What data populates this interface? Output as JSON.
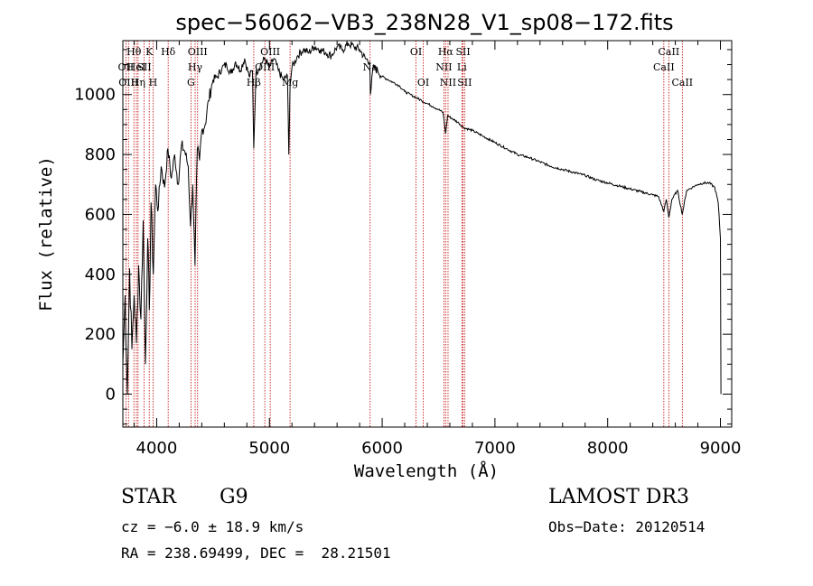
{
  "chart_data": {
    "type": "line",
    "title": "spec−56062−VB3_238N28_V1_sp08−172.fits",
    "xlabel": "Wavelength (Å)",
    "ylabel": "Flux (relative)",
    "xlim": [
      3700,
      9100
    ],
    "ylim": [
      -110,
      1180
    ],
    "xticks": [
      4000,
      5000,
      6000,
      7000,
      8000,
      9000
    ],
    "yticks": [
      0,
      200,
      400,
      600,
      800,
      1000
    ],
    "grid": false,
    "series": [
      {
        "name": "flux",
        "x": [
          3700,
          3720,
          3740,
          3760,
          3780,
          3800,
          3820,
          3840,
          3860,
          3880,
          3900,
          3920,
          3935,
          3950,
          3970,
          3990,
          4010,
          4040,
          4070,
          4100,
          4130,
          4160,
          4190,
          4220,
          4250,
          4280,
          4300,
          4320,
          4340,
          4360,
          4380,
          4400,
          4430,
          4460,
          4500,
          4540,
          4580,
          4620,
          4660,
          4700,
          4740,
          4780,
          4820,
          4850,
          4861,
          4880,
          4920,
          4960,
          5000,
          5040,
          5080,
          5120,
          5160,
          5172,
          5183,
          5200,
          5250,
          5300,
          5350,
          5400,
          5450,
          5500,
          5550,
          5600,
          5650,
          5700,
          5750,
          5800,
          5850,
          5890,
          5896,
          5920,
          5960,
          6000,
          6050,
          6100,
          6150,
          6200,
          6250,
          6300,
          6350,
          6400,
          6450,
          6500,
          6540,
          6563,
          6580,
          6620,
          6680,
          6720,
          6800,
          6900,
          7000,
          7100,
          7200,
          7300,
          7400,
          7500,
          7600,
          7700,
          7800,
          7900,
          8000,
          8100,
          8200,
          8300,
          8400,
          8450,
          8498,
          8520,
          8542,
          8570,
          8620,
          8662,
          8700,
          8750,
          8800,
          8850,
          8900,
          8950,
          8980,
          9000,
          9005
        ],
        "y": [
          100,
          330,
          0,
          420,
          150,
          330,
          170,
          430,
          250,
          580,
          100,
          520,
          280,
          640,
          400,
          700,
          610,
          760,
          690,
          820,
          720,
          800,
          700,
          830,
          810,
          760,
          560,
          700,
          430,
          820,
          780,
          880,
          900,
          980,
          1050,
          1060,
          1090,
          1100,
          1070,
          1110,
          1080,
          1120,
          1060,
          1080,
          820,
          1070,
          1100,
          1120,
          1090,
          1120,
          1080,
          1050,
          1060,
          800,
          1030,
          1090,
          1130,
          1150,
          1140,
          1160,
          1150,
          1140,
          1130,
          1160,
          1150,
          1170,
          1160,
          1150,
          1120,
          1110,
          1000,
          1090,
          1080,
          1060,
          1050,
          1040,
          1030,
          1010,
          1000,
          990,
          980,
          970,
          960,
          950,
          940,
          870,
          930,
          920,
          905,
          890,
          880,
          860,
          840,
          820,
          800,
          790,
          775,
          760,
          750,
          740,
          730,
          715,
          705,
          695,
          685,
          675,
          665,
          660,
          610,
          650,
          590,
          650,
          680,
          600,
          680,
          690,
          700,
          705,
          705,
          690,
          640,
          520,
          0
        ]
      }
    ],
    "spectral_lines": [
      {
        "x": 3727,
        "label": "OII",
        "row": 2
      },
      {
        "x": 3750,
        "label": "OIII",
        "row": 3
      },
      {
        "x": 3798,
        "label": "Hθ",
        "row": 1
      },
      {
        "x": 3820,
        "label": "HeI",
        "row": 2
      },
      {
        "x": 3835,
        "label": "Hη",
        "row": 3
      },
      {
        "x": 3889,
        "label": "SII",
        "row": 2
      },
      {
        "x": 3934,
        "label": "K",
        "row": 1
      },
      {
        "x": 3968,
        "label": "H",
        "row": 3
      },
      {
        "x": 4102,
        "label": "Hδ",
        "row": 1
      },
      {
        "x": 4304,
        "label": "G",
        "row": 3
      },
      {
        "x": 4341,
        "label": "Hγ",
        "row": 2
      },
      {
        "x": 4363,
        "label": "OIII",
        "row": 1
      },
      {
        "x": 4861,
        "label": "Hβ",
        "row": 3
      },
      {
        "x": 4959,
        "label": "OIII",
        "row": 2
      },
      {
        "x": 5007,
        "label": "OIII",
        "row": 1
      },
      {
        "x": 5183,
        "label": "Mg",
        "row": 3
      },
      {
        "x": 5893,
        "label": "Na",
        "row": 2
      },
      {
        "x": 6300,
        "label": "OI",
        "row": 1
      },
      {
        "x": 6364,
        "label": "OI",
        "row": 3
      },
      {
        "x": 6548,
        "label": "NII",
        "row": 2
      },
      {
        "x": 6563,
        "label": "Hα",
        "row": 1
      },
      {
        "x": 6584,
        "label": "NII",
        "row": 3
      },
      {
        "x": 6707,
        "label": "Li",
        "row": 2
      },
      {
        "x": 6717,
        "label": "SII",
        "row": 1
      },
      {
        "x": 6731,
        "label": "SII",
        "row": 3
      },
      {
        "x": 8498,
        "label": "CaII",
        "row": 2
      },
      {
        "x": 8542,
        "label": "CaII",
        "row": 1
      },
      {
        "x": 8662,
        "label": "CaII",
        "row": 3
      }
    ]
  },
  "info": {
    "object_class": "STAR",
    "subclass": "G9",
    "survey": "LAMOST DR3",
    "redshift": "cz = −6.0 ± 18.9 km/s",
    "obs_date": "Obs−Date: 20120514",
    "coordinates": "RA = 238.69499, DEC =  28.21501"
  },
  "colors": {
    "spectrum": "#000000",
    "line_marker": "#c00000",
    "axis": "#000000"
  }
}
